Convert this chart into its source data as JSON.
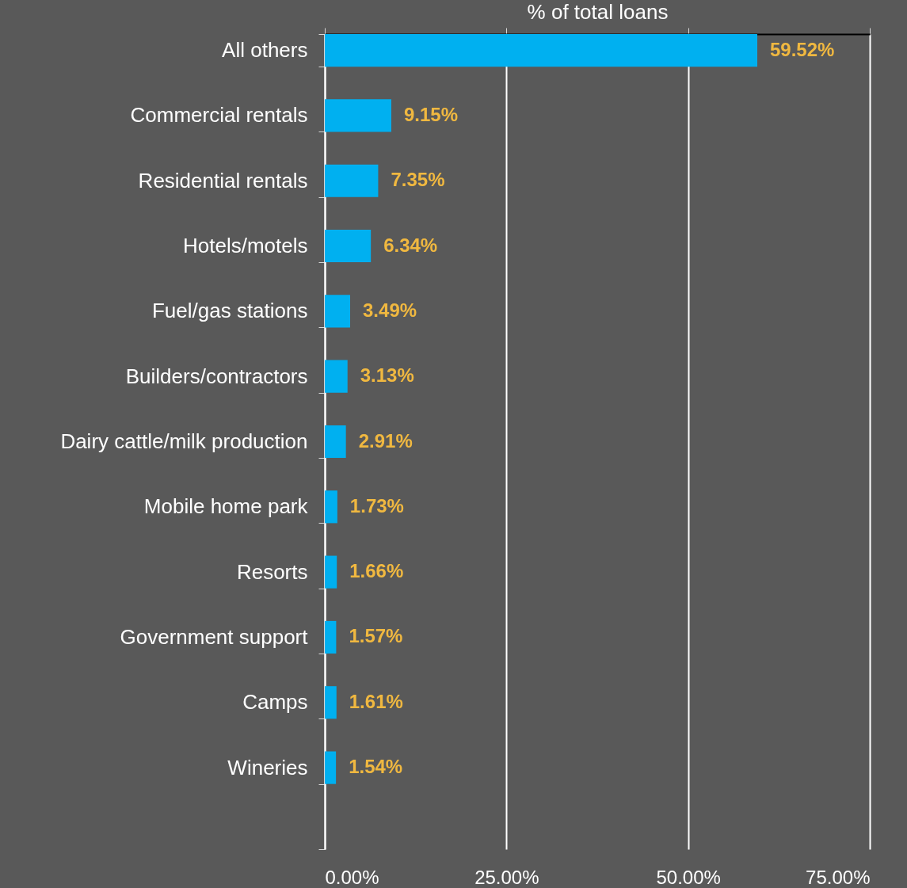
{
  "chart_data": {
    "type": "bar",
    "orientation": "horizontal",
    "xlabel": "% of total loans",
    "categories": [
      "All others",
      "Commercial rentals",
      "Residential rentals",
      "Hotels/motels",
      "Fuel/gas stations",
      "Builders/contractors",
      "Dairy cattle/milk production",
      "Mobile home park",
      "Resorts",
      "Government support",
      "Camps",
      "Wineries",
      null
    ],
    "values": [
      59.52,
      9.15,
      7.35,
      6.34,
      3.49,
      3.13,
      2.91,
      1.73,
      1.66,
      1.57,
      1.61,
      1.54,
      null
    ],
    "value_labels": [
      "59.52%",
      "9.15%",
      "7.35%",
      "6.34%",
      "3.49%",
      "3.13%",
      "2.91%",
      "1.73%",
      "1.66%",
      "1.57%",
      "1.61%",
      "1.54%",
      null
    ],
    "color": "#00b0f0",
    "xlim": [
      0,
      75
    ],
    "xticks": [
      {
        "value": 0,
        "label": "0.00%"
      },
      {
        "value": 25,
        "label": "25.00%"
      },
      {
        "value": 50,
        "label": "50.00%"
      },
      {
        "value": 75,
        "label": "75.00%"
      }
    ],
    "grid": "x"
  }
}
